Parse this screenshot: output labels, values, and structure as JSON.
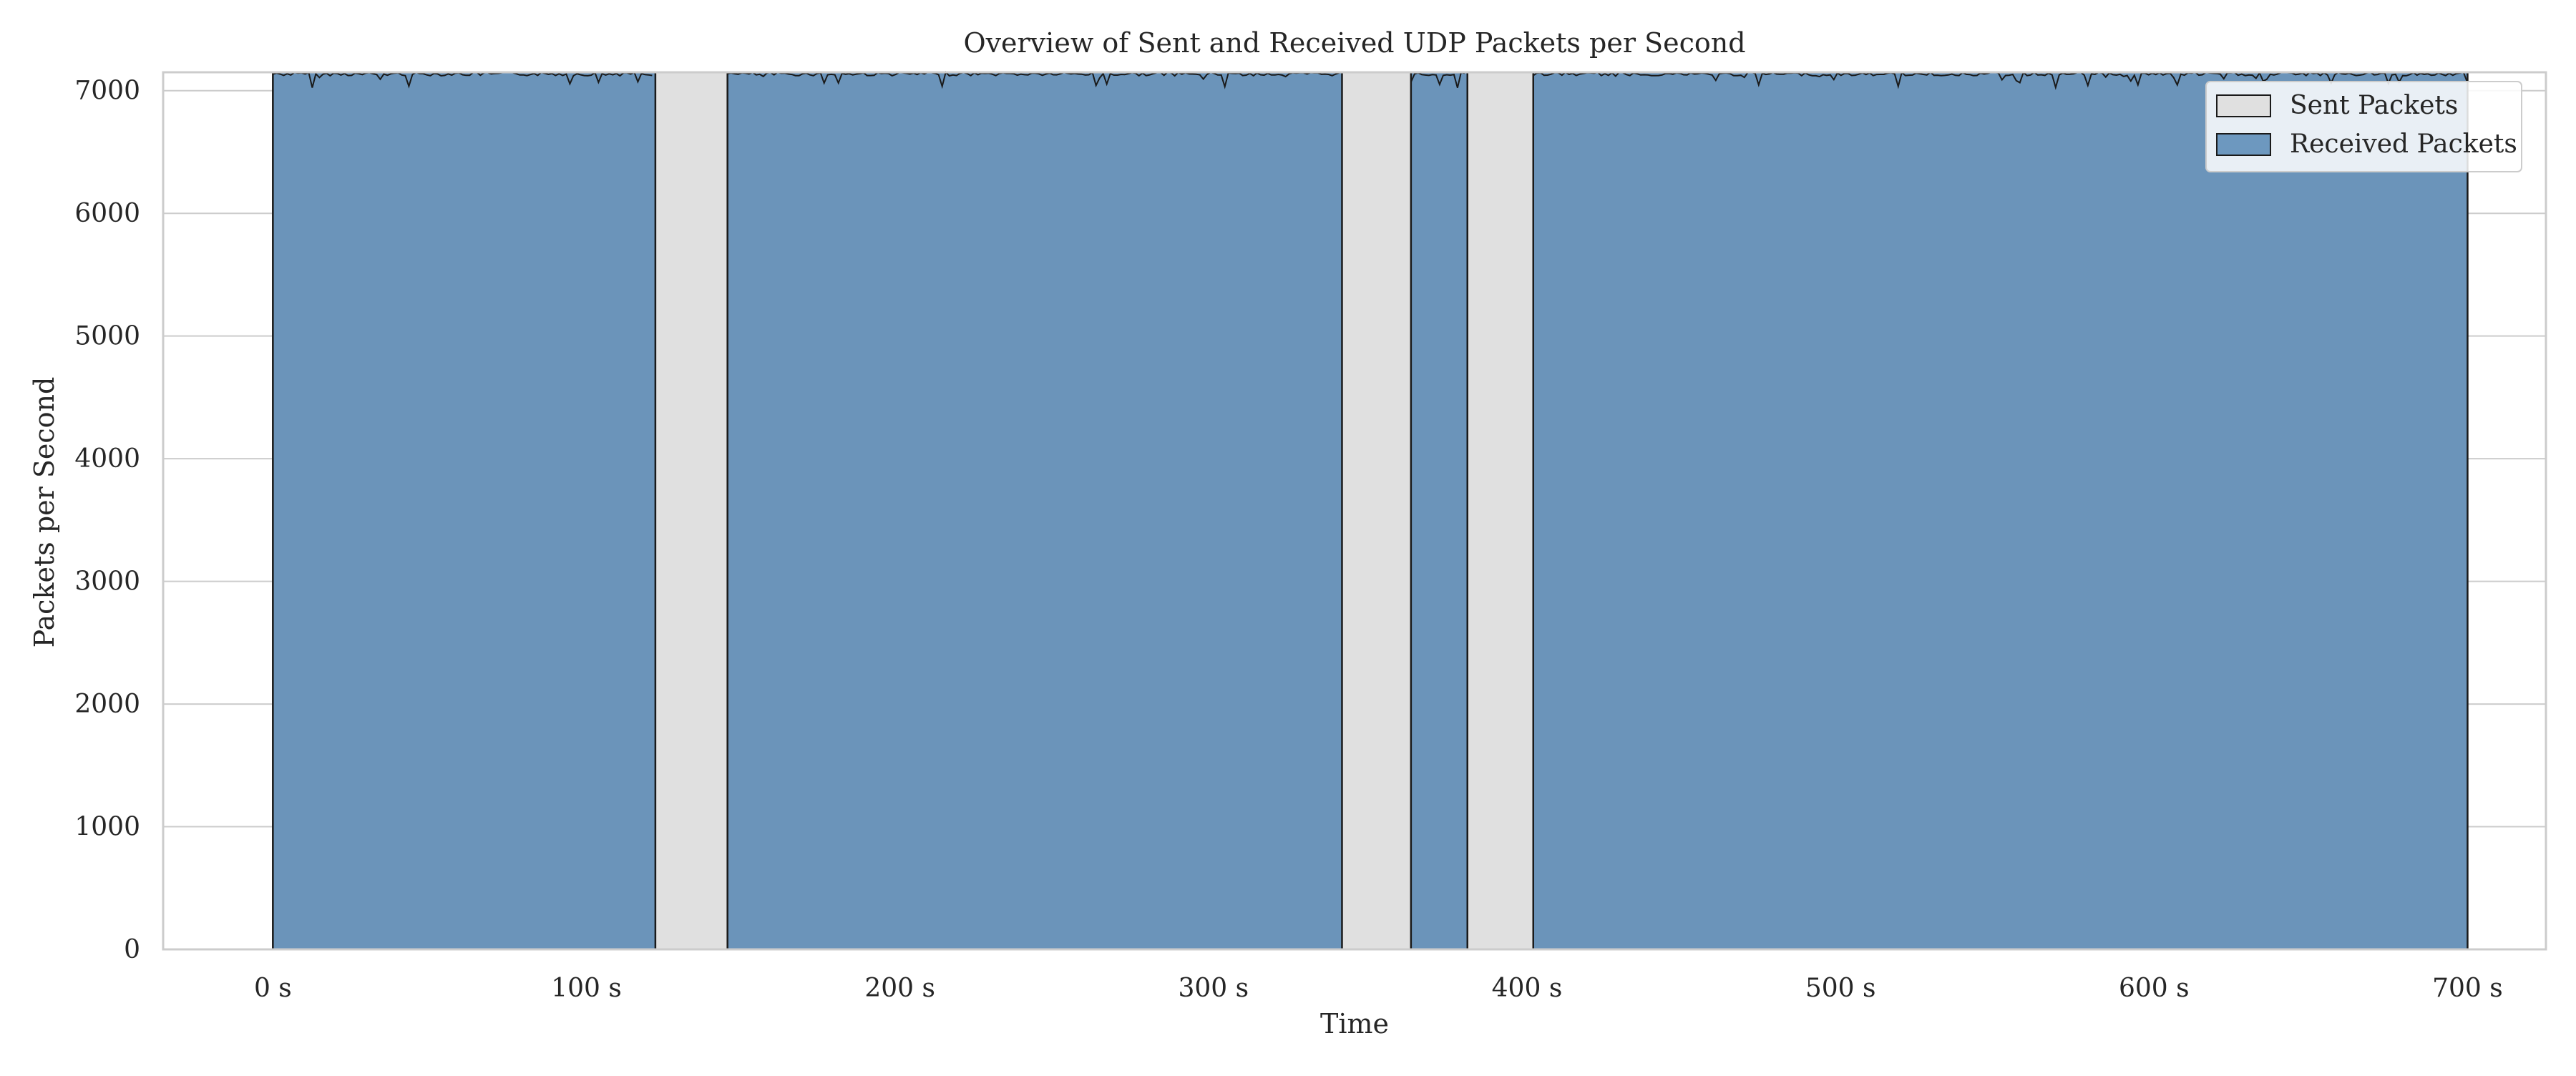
{
  "chart_data": {
    "type": "area",
    "title": "Overview of Sent and Received UDP Packets per Second",
    "xlabel": "Time",
    "ylabel": "Packets per Second",
    "xlim": [
      -35,
      725
    ],
    "ylim": [
      0,
      7150
    ],
    "x_ticks": [
      0,
      100,
      200,
      300,
      400,
      500,
      600,
      700
    ],
    "x_tick_labels": [
      "0 s",
      "100 s",
      "200 s",
      "300 s",
      "400 s",
      "500 s",
      "600 s",
      "700 s"
    ],
    "y_ticks": [
      0,
      1000,
      2000,
      3000,
      4000,
      5000,
      6000,
      7000
    ],
    "y_tick_labels": [
      "0",
      "1000",
      "2000",
      "3000",
      "4000",
      "5000",
      "6000",
      "7000"
    ],
    "grid": true,
    "legend_position": "top-right",
    "colors": {
      "sent_fill": "#e0e0e0",
      "received_fill": "#4a7fb0",
      "edge": "#1a1a1a",
      "grid": "#cccccc",
      "spine": "#cccccc"
    },
    "series": [
      {
        "name": "Sent Packets",
        "segments": [
          {
            "x": [
              0,
              700
            ],
            "y": 7150
          }
        ]
      },
      {
        "name": "Received Packets",
        "segments": [
          {
            "x": [
              0,
              122
            ],
            "y": 7150
          },
          {
            "x": [
              145,
              341
            ],
            "y": 7150
          },
          {
            "x": [
              363,
              381
            ],
            "y": 7150
          },
          {
            "x": [
              402,
              700
            ],
            "y": 7150
          }
        ],
        "zero_intervals": [
          [
            122,
            145
          ],
          [
            341,
            363
          ],
          [
            381,
            402
          ]
        ]
      }
    ]
  }
}
